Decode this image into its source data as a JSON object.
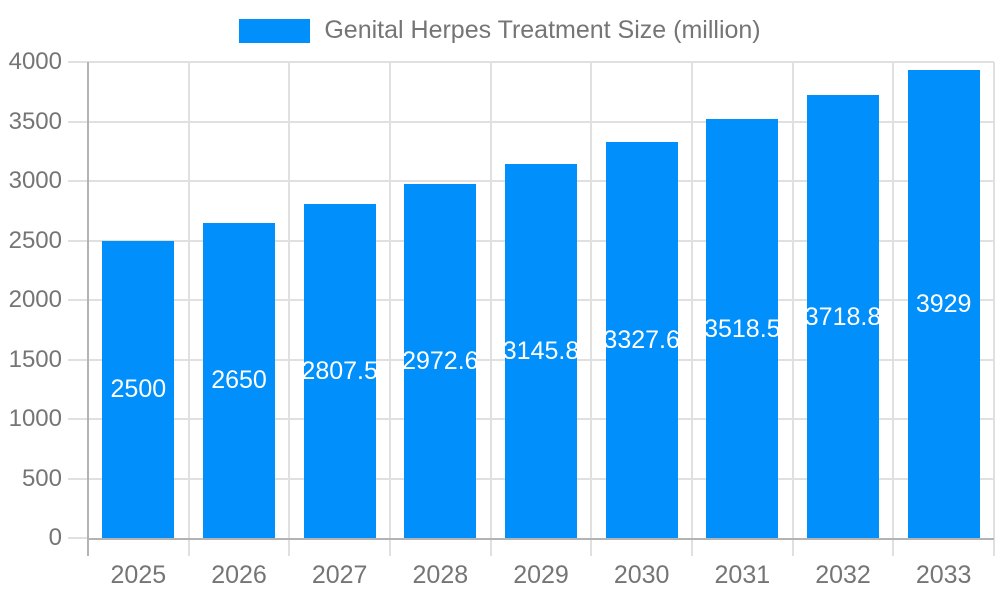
{
  "legend": {
    "label": "Genital Herpes Treatment Size (million)"
  },
  "chart_data": {
    "type": "bar",
    "title": "",
    "xlabel": "",
    "ylabel": "",
    "categories": [
      "2025",
      "2026",
      "2027",
      "2028",
      "2029",
      "2030",
      "2031",
      "2032",
      "2033"
    ],
    "series": [
      {
        "name": "Genital Herpes Treatment Size (million)",
        "values": [
          2500,
          2650,
          2807.5,
          2972.6,
          3145.8,
          3327.6,
          3518.5,
          3718.8,
          3929
        ],
        "labels": [
          "2500",
          "2650",
          "2807.5",
          "2972.6",
          "3145.8",
          "3327.6",
          "3518.5",
          "3718.8",
          "3929"
        ]
      }
    ],
    "ylim": [
      0,
      4000
    ],
    "yticks": [
      0,
      500,
      1000,
      1500,
      2000,
      2500,
      3000,
      3500,
      4000
    ],
    "grid": true,
    "legend_position": "top",
    "data_labels": "inside-center"
  },
  "colors": {
    "bar": "#008FFB",
    "grid": "#e0e0e0",
    "axis": "#b3b3b3",
    "text": "#757575",
    "label": "#ffffff",
    "background": "#ffffff"
  }
}
